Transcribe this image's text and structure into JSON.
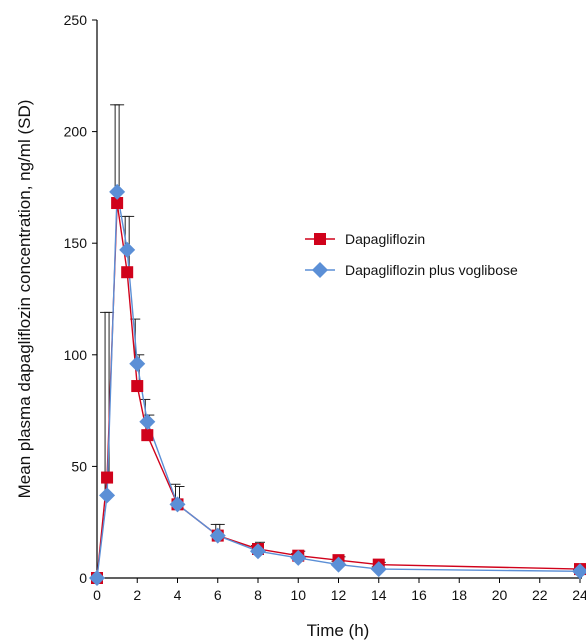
{
  "chart_data": {
    "type": "line",
    "title": "",
    "xlabel": "Time (h)",
    "ylabel": "Mean plasma dapagliflozin concentration, ng/ml (SD)",
    "xlim": [
      0,
      24
    ],
    "ylim": [
      0,
      250
    ],
    "x_ticks": [
      "0",
      "2",
      "4",
      "6",
      "8",
      "10",
      "12",
      "14",
      "16",
      "18",
      "20",
      "22",
      "24"
    ],
    "y_ticks": [
      "0",
      "50",
      "100",
      "150",
      "200",
      "250"
    ],
    "grid": false,
    "legend_position": "right-center",
    "series": [
      {
        "name": "Dapagliflozin",
        "color": "#d0021b",
        "marker": "square",
        "x": [
          0,
          0.5,
          1,
          1.5,
          2,
          2.5,
          4,
          6,
          8,
          10,
          12,
          14,
          24
        ],
        "y": [
          0,
          45,
          168,
          137,
          86,
          64,
          33,
          19,
          13,
          10,
          8,
          6,
          4
        ],
        "error": [
          0,
          74,
          44,
          25,
          14,
          9,
          8,
          5,
          3,
          2,
          1.5,
          1,
          0.8
        ]
      },
      {
        "name": "Dapagliflozin plus voglibose",
        "color": "#5b8fd6",
        "marker": "diamond",
        "x": [
          0,
          0.5,
          1,
          1.5,
          2,
          2.5,
          4,
          6,
          8,
          10,
          12,
          14,
          24
        ],
        "y": [
          0,
          37,
          173,
          147,
          96,
          70,
          33,
          19,
          12,
          9,
          6,
          4,
          3
        ],
        "error": [
          0,
          82,
          39,
          15,
          20,
          10,
          9,
          5,
          2.5,
          2,
          1.5,
          1,
          0.8
        ]
      }
    ]
  }
}
